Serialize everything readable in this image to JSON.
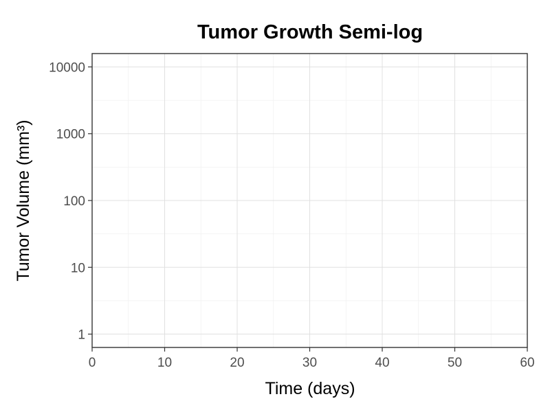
{
  "chart_data": {
    "type": "line",
    "title": "Tumor Growth Semi-log",
    "xlabel": "Time (days)",
    "ylabel": "Tumor Volume (mm³)",
    "xlim": [
      0,
      60
    ],
    "ylim": [
      0.631,
      15849
    ],
    "y_scale": "log10",
    "x_ticks": [
      0,
      10,
      20,
      30,
      40,
      50,
      60
    ],
    "x_tick_labels": [
      "0",
      "10",
      "20",
      "30",
      "40",
      "50",
      "60"
    ],
    "x_minor_ticks": [
      5,
      15,
      25,
      35,
      45,
      55
    ],
    "y_ticks": [
      1,
      10,
      100,
      1000,
      10000
    ],
    "y_tick_labels": [
      "1",
      "10",
      "100",
      "1000",
      "10000"
    ],
    "y_minor_ticks": [
      3.162,
      31.62,
      316.2,
      3162
    ],
    "grid": true,
    "series": []
  }
}
